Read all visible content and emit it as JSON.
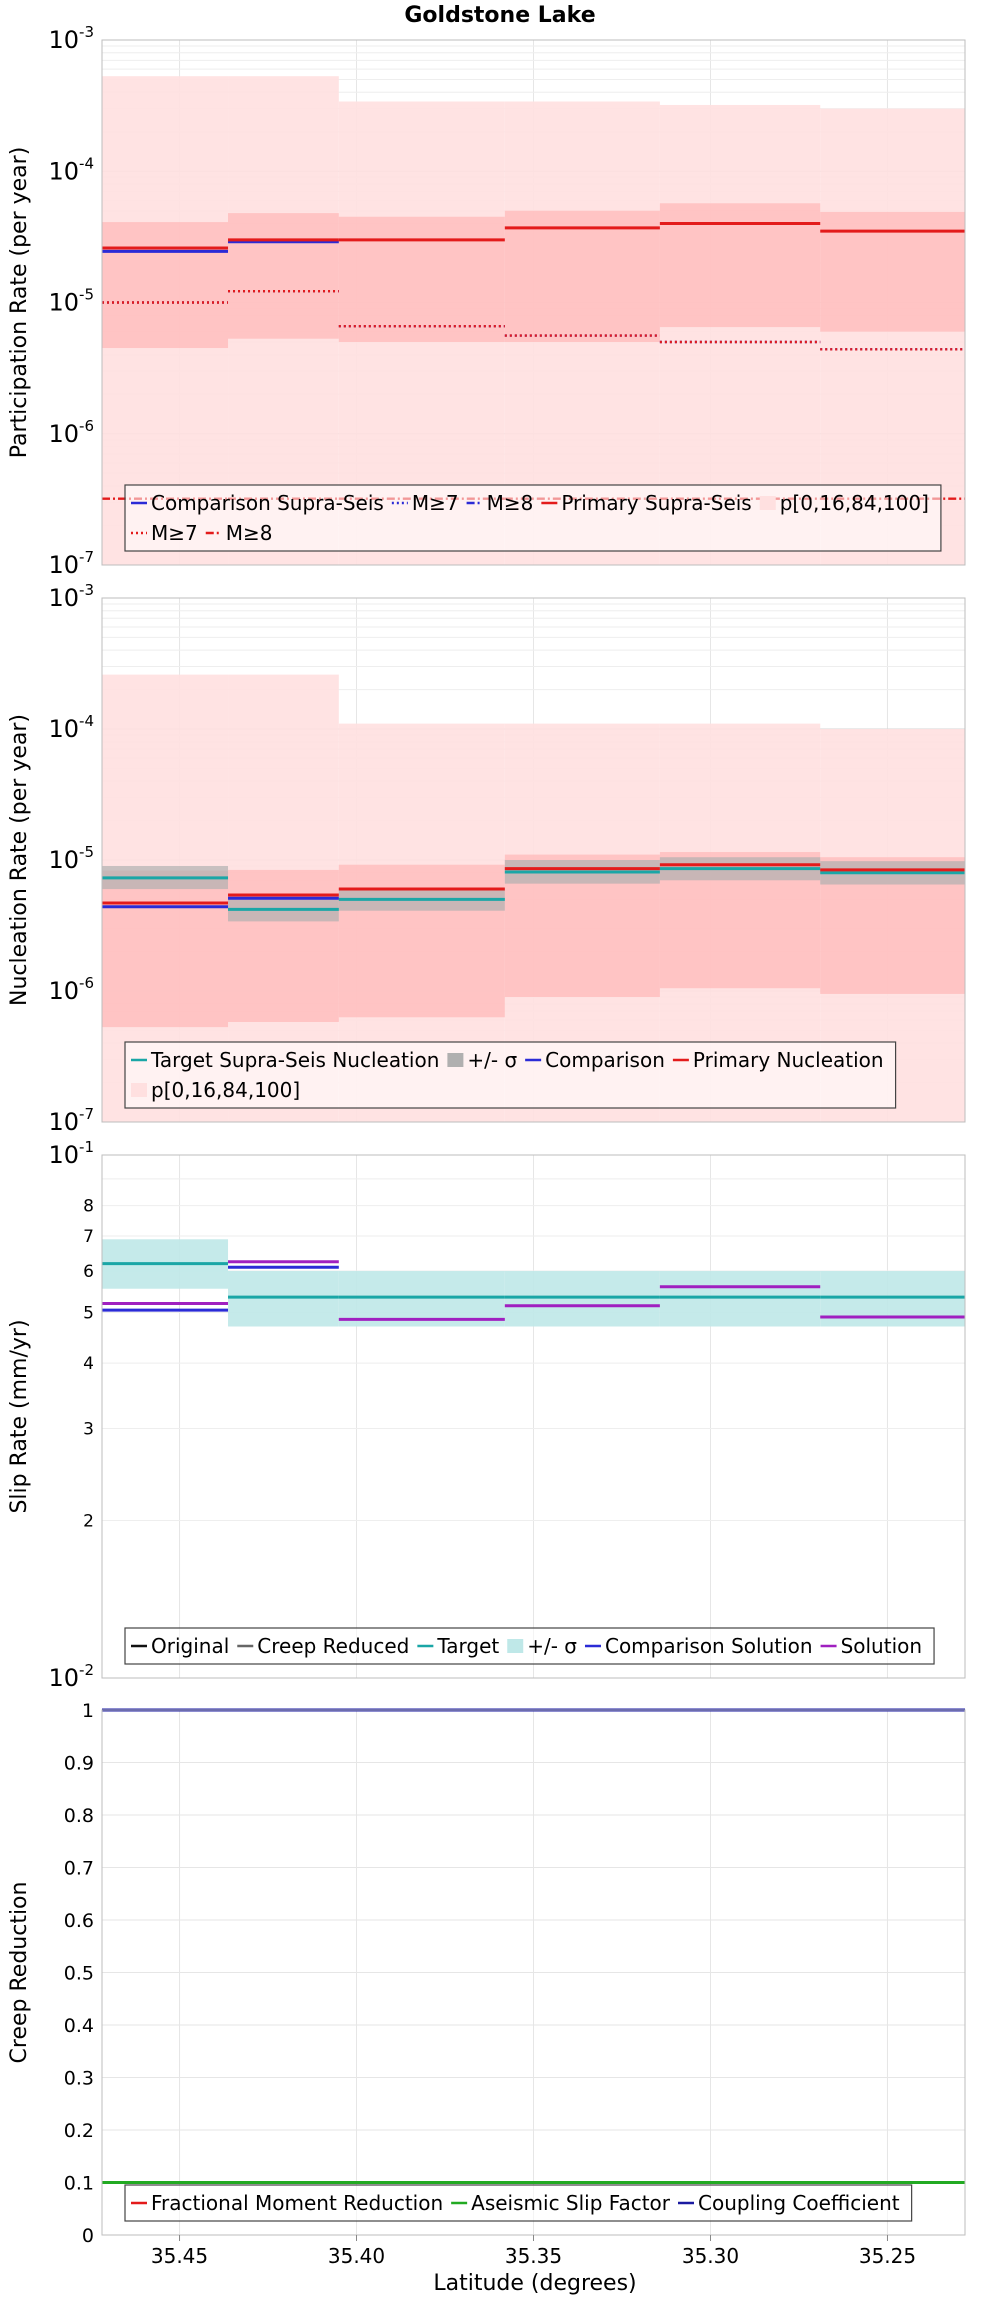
{
  "figure_title": "Goldstone Lake",
  "xlabel": "Latitude (degrees)",
  "x_ticks": [
    "35.45",
    "35.40",
    "35.35",
    "35.30",
    "35.25"
  ],
  "colors": {
    "comparison": "#2b2bd6",
    "primary": "#e31b1b",
    "target": "#1aa6a6",
    "target_band": "#bfe8e8",
    "solution": "#a020c0",
    "original": "#111111",
    "creep_reduced": "#666666",
    "aseismic": "#22aa22",
    "coupling": "#1a1aa0",
    "band_outer": "#ffe0e0",
    "band_inner": "#ffbcbc",
    "sigma_band": "#b0b0b0"
  },
  "chart_data": [
    {
      "type": "line",
      "subtype": "step",
      "title": "Goldstone Lake",
      "ylabel": "Participation Rate (per year)",
      "xlabel": "",
      "yscale": "log",
      "ylim": [
        1e-07,
        0.001
      ],
      "xlim": [
        35.4719,
        35.2281
      ],
      "x_edges": [
        35.4719,
        35.4363,
        35.405,
        35.3581,
        35.3143,
        35.269,
        35.2281
      ],
      "y_tick_labels": [
        "10^-7",
        "10^-6",
        "10^-5",
        "10^-4",
        "10^-3"
      ],
      "series": [
        {
          "name": "Comparison Supra-Seis",
          "style": "solid",
          "color": "#2b2bd6",
          "values": [
            2.45e-05,
            2.9e-05,
            null,
            null,
            null,
            null
          ]
        },
        {
          "name": "M≥7",
          "style": "dotted",
          "color": "#2b2bd6",
          "values": [
            1e-05,
            1.22e-05,
            6.6e-06,
            5.6e-06,
            5e-06,
            4.4e-06
          ]
        },
        {
          "name": "M≥8",
          "style": "dashdot",
          "color": "#2b2bd6",
          "values": [
            null,
            null,
            null,
            null,
            null,
            null
          ]
        },
        {
          "name": "Primary Supra-Seis",
          "style": "solid",
          "color": "#e31b1b",
          "values": [
            2.6e-05,
            3e-05,
            3e-05,
            3.7e-05,
            4e-05,
            3.5e-05
          ]
        },
        {
          "name": "M≥7",
          "style": "dotted",
          "color": "#e31b1b",
          "values": [
            1e-05,
            1.22e-05,
            6.6e-06,
            5.6e-06,
            5e-06,
            4.4e-06
          ]
        },
        {
          "name": "M≥8",
          "style": "dashdot",
          "color": "#e31b1b",
          "values": [
            3.2e-07,
            3.2e-07,
            3.2e-07,
            3.2e-07,
            3.2e-07,
            3.2e-07
          ]
        }
      ],
      "bands": [
        {
          "name": "p[0,16,84,100]",
          "kind": "outer",
          "low": [
            1e-07,
            1e-07,
            1e-07,
            1e-07,
            1e-07,
            1e-07
          ],
          "high": [
            0.00053,
            0.00053,
            0.00034,
            0.00034,
            0.00032,
            0.0003
          ]
        },
        {
          "name": "",
          "kind": "inner",
          "low": [
            4.5e-06,
            5.3e-06,
            5e-06,
            5e-06,
            6.5e-06,
            6e-06
          ],
          "high": [
            4.1e-05,
            4.8e-05,
            4.5e-05,
            5e-05,
            5.7e-05,
            4.9e-05
          ]
        }
      ],
      "legend": {
        "placement": "bottom",
        "rows": [
          [
            {
              "label": "Comparison Supra-Seis",
              "kind": "line",
              "color": "#2b2bd6",
              "dash": "solid"
            },
            {
              "label": "M≥7",
              "kind": "line",
              "color": "#2b2bd6",
              "dash": "dotted"
            },
            {
              "label": "M≥8",
              "kind": "line",
              "color": "#2b2bd6",
              "dash": "dashdot"
            },
            {
              "label": "Primary Supra-Seis",
              "kind": "line",
              "color": "#e31b1b",
              "dash": "solid"
            },
            {
              "label": "p[0,16,84,100]",
              "kind": "patch",
              "color": "#ffe0e0"
            }
          ],
          [
            {
              "label": "M≥7",
              "kind": "line",
              "color": "#e31b1b",
              "dash": "dotted"
            },
            {
              "label": "M≥8",
              "kind": "line",
              "color": "#e31b1b",
              "dash": "dashdot"
            }
          ]
        ]
      }
    },
    {
      "type": "line",
      "subtype": "step",
      "title": "",
      "ylabel": "Nucleation Rate (per year)",
      "xlabel": "",
      "yscale": "log",
      "ylim": [
        1e-07,
        0.001
      ],
      "xlim": [
        35.4719,
        35.2281
      ],
      "x_edges": [
        35.4719,
        35.4363,
        35.405,
        35.3581,
        35.3143,
        35.269,
        35.2281
      ],
      "y_tick_labels": [
        "10^-7",
        "10^-6",
        "10^-5",
        "10^-4",
        "10^-3"
      ],
      "series": [
        {
          "name": "Target Supra-Seis Nucleation",
          "style": "solid",
          "color": "#1aa6a6",
          "values": [
            7.3e-06,
            4.2e-06,
            5e-06,
            8.1e-06,
            8.6e-06,
            8e-06
          ]
        },
        {
          "name": "Comparison",
          "style": "solid",
          "color": "#2b2bd6",
          "values": [
            4.4e-06,
            5.1e-06,
            null,
            null,
            null,
            null
          ]
        },
        {
          "name": "Primary Nucleation",
          "style": "solid",
          "color": "#e31b1b",
          "values": [
            4.7e-06,
            5.4e-06,
            6e-06,
            8.6e-06,
            9.2e-06,
            8.4e-06
          ]
        }
      ],
      "bands": [
        {
          "name": "p[0,16,84,100]",
          "kind": "outer",
          "low": [
            1e-07,
            1e-07,
            1e-07,
            1e-07,
            1e-07,
            1e-07
          ],
          "high": [
            0.00026,
            0.00026,
            0.00011,
            0.00011,
            0.00011,
            0.0001
          ]
        },
        {
          "name": "",
          "kind": "inner",
          "low": [
            5.3e-07,
            5.8e-07,
            6.3e-07,
            9e-07,
            1.05e-06,
            9.5e-07
          ],
          "high": [
            8.3e-06,
            8.4e-06,
            9.2e-06,
            1.1e-05,
            1.15e-05,
            1.05e-05
          ]
        },
        {
          "name": "+/- σ",
          "kind": "sigma",
          "low": [
            6e-06,
            3.4e-06,
            4.1e-06,
            6.6e-06,
            7e-06,
            6.5e-06
          ],
          "high": [
            9e-06,
            5.2e-06,
            6.1e-06,
            1e-05,
            1.05e-05,
            9.8e-06
          ]
        }
      ],
      "legend": {
        "placement": "bottom",
        "rows": [
          [
            {
              "label": "Target Supra-Seis Nucleation",
              "kind": "line",
              "color": "#1aa6a6",
              "dash": "solid"
            },
            {
              "label": "+/- σ",
              "kind": "patch",
              "color": "#b0b0b0"
            },
            {
              "label": "Comparison",
              "kind": "line",
              "color": "#2b2bd6",
              "dash": "solid"
            },
            {
              "label": "Primary Nucleation",
              "kind": "line",
              "color": "#e31b1b",
              "dash": "solid"
            }
          ],
          [
            {
              "label": "p[0,16,84,100]",
              "kind": "patch",
              "color": "#ffe0e0"
            }
          ]
        ]
      }
    },
    {
      "type": "line",
      "subtype": "step",
      "title": "",
      "ylabel": "Slip Rate (mm/yr)",
      "xlabel": "",
      "yscale": "log",
      "ylim": [
        1,
        10
      ],
      "xlim": [
        35.4719,
        35.2281
      ],
      "x_edges": [
        35.4719,
        35.4363,
        35.405,
        35.3581,
        35.3143,
        35.269,
        35.2281
      ],
      "y_tick_labels": [
        "10^-2",
        "2",
        "3",
        "4",
        "5",
        "6",
        "7",
        "8",
        "10^-1"
      ],
      "series": [
        {
          "name": "Original",
          "style": "solid",
          "color": "#111111",
          "values": [
            null,
            null,
            null,
            null,
            null,
            null
          ]
        },
        {
          "name": "Creep Reduced",
          "style": "solid",
          "color": "#666666",
          "values": [
            null,
            null,
            null,
            null,
            null,
            null
          ]
        },
        {
          "name": "Target",
          "style": "solid",
          "color": "#1aa6a6",
          "values": [
            6.2,
            5.35,
            5.35,
            5.35,
            5.35,
            5.35
          ]
        },
        {
          "name": "Comparison Solution",
          "style": "solid",
          "color": "#2b2bd6",
          "values": [
            5.05,
            6.1,
            null,
            null,
            null,
            null
          ]
        },
        {
          "name": "Solution",
          "style": "solid",
          "color": "#a020c0",
          "values": [
            5.2,
            6.25,
            4.85,
            5.15,
            5.6,
            4.9
          ]
        }
      ],
      "bands": [
        {
          "name": "+/- σ",
          "kind": "target",
          "low": [
            5.55,
            4.7,
            4.7,
            4.7,
            4.7,
            4.7
          ],
          "high": [
            6.9,
            6.0,
            6.0,
            6.0,
            6.0,
            6.0
          ]
        }
      ],
      "legend": {
        "placement": "bottom-left",
        "rows": [
          [
            {
              "label": "Original",
              "kind": "line",
              "color": "#111111",
              "dash": "solid"
            },
            {
              "label": "Creep Reduced",
              "kind": "line",
              "color": "#666666",
              "dash": "solid"
            },
            {
              "label": "Target",
              "kind": "line",
              "color": "#1aa6a6",
              "dash": "solid"
            },
            {
              "label": "+/- σ",
              "kind": "patch",
              "color": "#bfe8e8"
            },
            {
              "label": "Comparison Solution",
              "kind": "line",
              "color": "#2b2bd6",
              "dash": "solid"
            },
            {
              "label": "Solution",
              "kind": "line",
              "color": "#a020c0",
              "dash": "solid"
            }
          ]
        ]
      }
    },
    {
      "type": "line",
      "subtype": "step",
      "title": "",
      "ylabel": "Creep Reduction",
      "xlabel": "Latitude (degrees)",
      "yscale": "linear",
      "ylim": [
        0,
        1
      ],
      "xlim": [
        35.4719,
        35.2281
      ],
      "x_edges": [
        35.4719,
        35.2281
      ],
      "y_tick_labels": [
        "0",
        "0.1",
        "0.2",
        "0.3",
        "0.4",
        "0.5",
        "0.6",
        "0.7",
        "0.8",
        "0.9",
        "1"
      ],
      "series": [
        {
          "name": "Fractional Moment Reduction",
          "style": "solid",
          "color": "#e31b1b",
          "values": [
            null
          ]
        },
        {
          "name": "Aseismic Slip Factor",
          "style": "solid",
          "color": "#22aa22",
          "values": [
            0.1
          ]
        },
        {
          "name": "Coupling Coefficient",
          "style": "solid",
          "color": "#1a1aa0",
          "values": [
            1.0
          ]
        }
      ],
      "bands": [],
      "legend": {
        "placement": "bottom",
        "rows": [
          [
            {
              "label": "Fractional Moment Reduction",
              "kind": "line",
              "color": "#e31b1b",
              "dash": "solid"
            },
            {
              "label": "Aseismic Slip Factor",
              "kind": "line",
              "color": "#22aa22",
              "dash": "solid"
            },
            {
              "label": "Coupling Coefficient",
              "kind": "line",
              "color": "#1a1aa0",
              "dash": "solid"
            }
          ]
        ]
      }
    }
  ]
}
